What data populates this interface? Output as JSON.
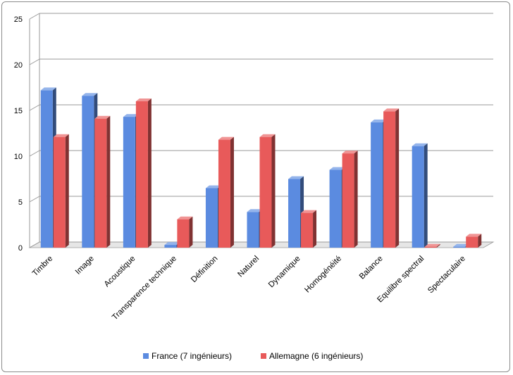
{
  "chart_data": {
    "type": "bar",
    "categories": [
      "Timbre",
      "Image",
      "Acoustique",
      "Transparence technique",
      "Définition",
      "Naturel",
      "Dynamique",
      "Homogénéité",
      "Balance",
      "Equilibre spectral",
      "Spectaculaire"
    ],
    "series": [
      {
        "name": "France (7 ingénieurs)",
        "values": [
          17.2,
          16.6,
          14.3,
          0.3,
          6.5,
          3.9,
          7.5,
          8.5,
          13.7,
          11.1,
          0.1
        ],
        "color": "#5b8be0"
      },
      {
        "name": "Allemagne (6 ingénieurs)",
        "values": [
          12.1,
          14.1,
          16.0,
          3.1,
          11.8,
          12.1,
          3.8,
          10.3,
          14.9,
          0.1,
          1.2
        ],
        "color": "#e85a5a"
      }
    ],
    "yticks": [
      0,
      5,
      10,
      15,
      20,
      25
    ],
    "ylim": [
      0,
      25
    ],
    "grid": true,
    "legend_position": "bottom",
    "style": "3d-clustered-column"
  }
}
